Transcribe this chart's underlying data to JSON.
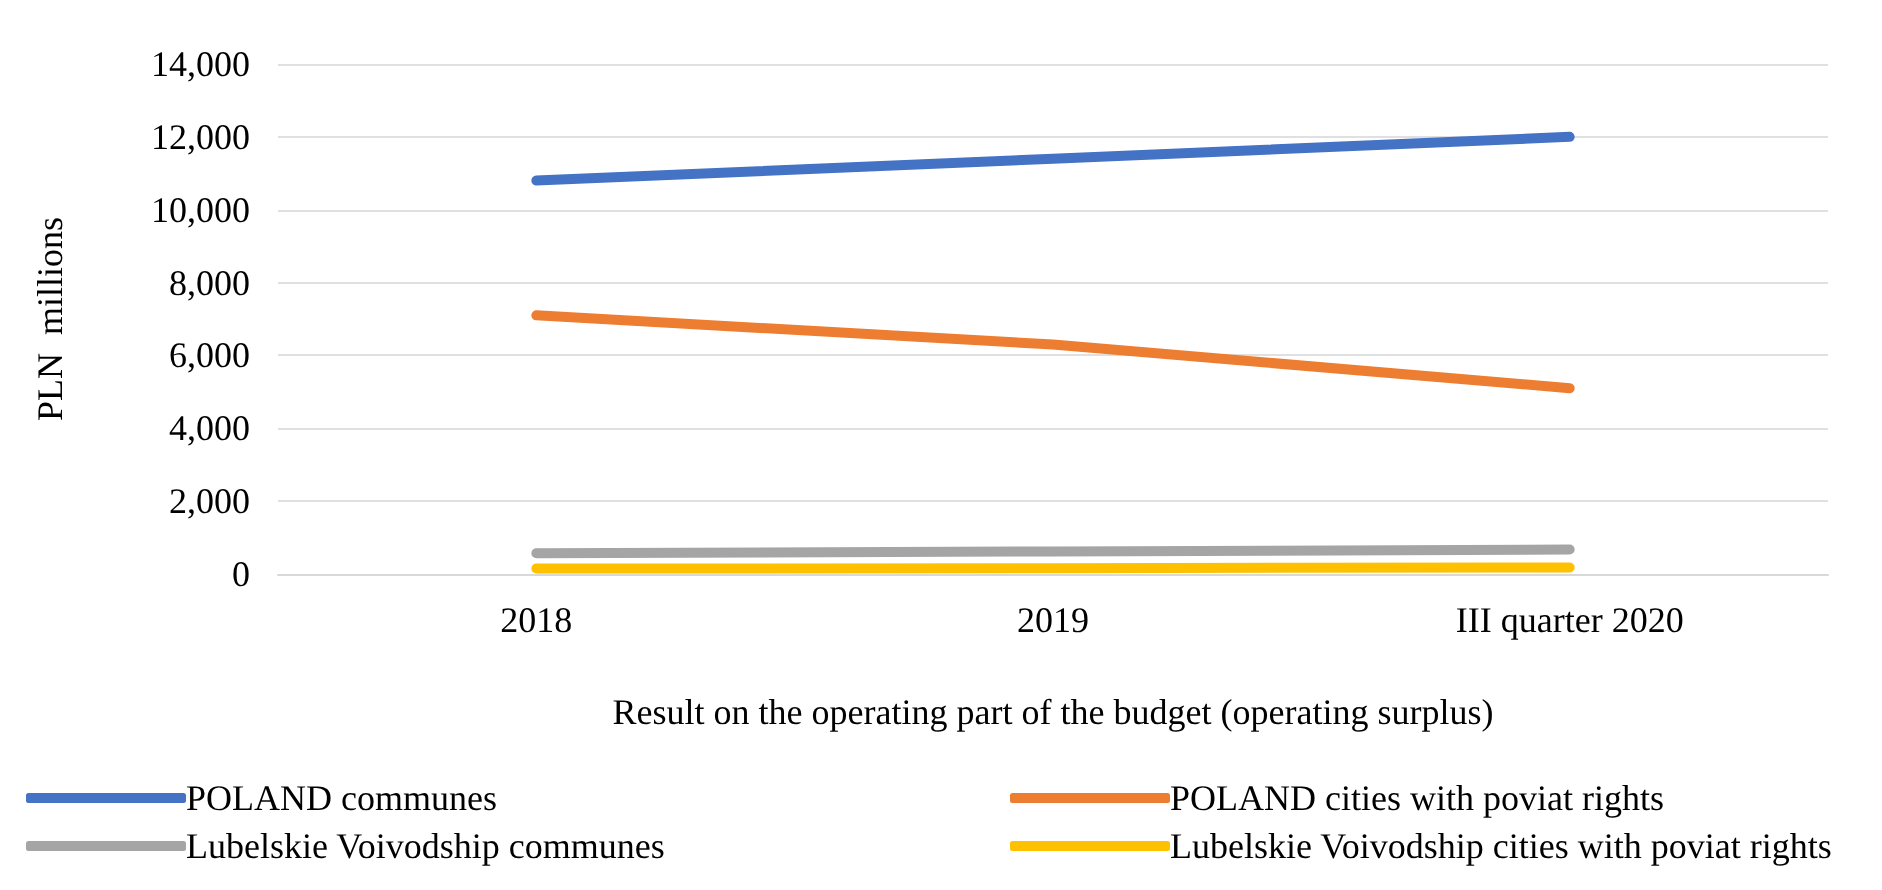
{
  "chart_data": {
    "type": "line",
    "xlabel": "Result on the operating part of the budget (operating surplus)",
    "ylabel": "PLN  millions",
    "categories": [
      "2018",
      "2019",
      "III quarter 2020"
    ],
    "series": [
      {
        "name": "POLAND communes",
        "color": "#4472c4",
        "values": [
          10800,
          11400,
          12000
        ]
      },
      {
        "name": "POLAND cities with poviat rights",
        "color": "#ed7d31",
        "values": [
          7100,
          6300,
          5100
        ]
      },
      {
        "name": "Lubelskie Voivodship communes",
        "color": "#a5a5a5",
        "values": [
          570,
          620,
          670
        ]
      },
      {
        "name": "Lubelskie Voivodship cities with poviat rights",
        "color": "#ffc000",
        "values": [
          150,
          160,
          180
        ]
      }
    ],
    "ylim": [
      0,
      14000
    ],
    "yticks": [
      0,
      {
        "value": 2000,
        "label": "2,000"
      },
      {
        "value": 4000,
        "label": "4,000"
      },
      {
        "value": 6000,
        "label": "6,000"
      },
      {
        "value": 8000,
        "label": "8,000"
      },
      {
        "value": 10000,
        "label": "10,000"
      },
      {
        "value": 12000,
        "label": "12,000"
      },
      {
        "value": 14000,
        "label": "14,000"
      }
    ],
    "grid": "y",
    "legend": "bottom",
    "marker": "none",
    "line_style": "solid"
  }
}
